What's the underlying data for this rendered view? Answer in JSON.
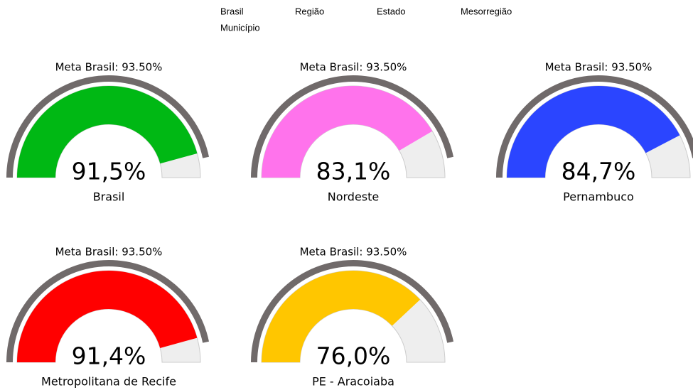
{
  "nav": [
    "Brasil",
    "Região",
    "Estado",
    "Mesorregião",
    "Município"
  ],
  "chart_data": [
    {
      "type": "gauge",
      "title": "Meta Brasil: 93.50%",
      "target": 93.5,
      "categories": [
        "Brasil"
      ],
      "values": [
        91.5
      ],
      "value_labels": [
        "91,5%"
      ],
      "color": "#00b814",
      "ylim": [
        0,
        100
      ]
    },
    {
      "type": "gauge",
      "title": "Meta Brasil: 93.50%",
      "target": 93.5,
      "categories": [
        "Nordeste"
      ],
      "values": [
        83.1
      ],
      "value_labels": [
        "83,1%"
      ],
      "color": "#ff73ec",
      "ylim": [
        0,
        100
      ]
    },
    {
      "type": "gauge",
      "title": "Meta Brasil: 93.50%",
      "target": 93.5,
      "categories": [
        "Pernambuco"
      ],
      "values": [
        84.7
      ],
      "value_labels": [
        "84,7%"
      ],
      "color": "#2b45ff",
      "ylim": [
        0,
        100
      ]
    },
    {
      "type": "gauge",
      "title": "Meta Brasil: 93.50%",
      "target": 93.5,
      "categories": [
        "Metropolitana de Recife"
      ],
      "values": [
        91.4
      ],
      "value_labels": [
        "91,4%"
      ],
      "color": "#ff0000",
      "ylim": [
        0,
        100
      ]
    },
    {
      "type": "gauge",
      "title": "Meta Brasil: 93.50%",
      "target": 93.5,
      "categories": [
        "PE - Aracoiaba"
      ],
      "values": [
        76.0
      ],
      "value_labels": [
        "76,0%"
      ],
      "color": "#ffc600",
      "ylim": [
        0,
        100
      ]
    }
  ]
}
